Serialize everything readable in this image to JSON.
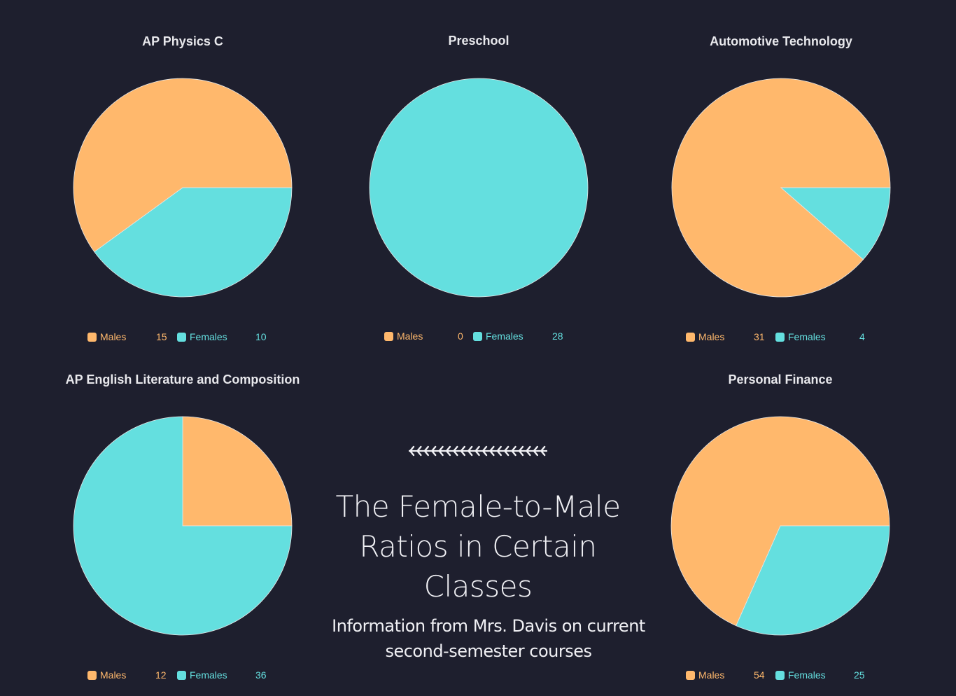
{
  "colors": {
    "background": "#1e1f2e",
    "males": "#ffb86c",
    "females": "#64dfdf",
    "title_text": "#e8e8ec"
  },
  "legend_labels": {
    "males": "Males",
    "females": "Females"
  },
  "center": {
    "title_line1": "The Female-to-Male",
    "title_line2": "Ratios in Certain Classes",
    "subtitle_line1": "Information from Mrs. Davis on current",
    "subtitle_line2": "second-semester courses"
  },
  "chart_data": [
    {
      "type": "pie",
      "title": "AP Physics C",
      "categories": [
        "Males",
        "Females"
      ],
      "values": [
        15,
        10
      ]
    },
    {
      "type": "pie",
      "title": "Preschool",
      "categories": [
        "Males",
        "Females"
      ],
      "values": [
        0,
        28
      ]
    },
    {
      "type": "pie",
      "title": "Automotive Technology",
      "categories": [
        "Males",
        "Females"
      ],
      "values": [
        31,
        4
      ]
    },
    {
      "type": "pie",
      "title": "AP English Literature and Composition",
      "categories": [
        "Males",
        "Females"
      ],
      "values": [
        12,
        36
      ]
    },
    {
      "type": "pie",
      "title": "Personal Finance",
      "categories": [
        "Males",
        "Females"
      ],
      "values": [
        54,
        25
      ]
    }
  ]
}
